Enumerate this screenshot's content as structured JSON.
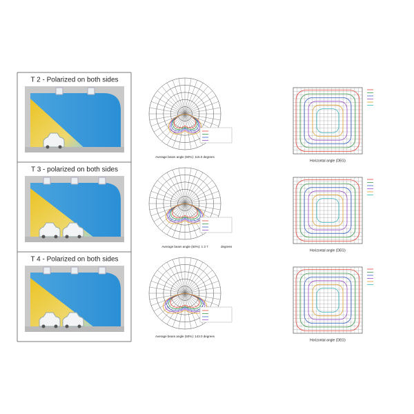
{
  "rows": [
    {
      "title": "T 2 - Polarized on both sides",
      "beam_caption": "Average beam angle (50%): 115.0 degrees",
      "isolux_xlabel": "Horizontal angle (DEG)"
    },
    {
      "title": "T 3 - polarized on both sides",
      "beam_caption": "Average beam angle (50%): 1 3 7",
      "beam_unit": "degrees",
      "isolux_xlabel": "Horizontal angle (DEG)"
    },
    {
      "title": "T 4 - Polarized on both sides",
      "beam_caption": "Average beam angle (50%): 143.0 degrees",
      "isolux_xlabel": "Horizontal angle (DEG)"
    }
  ]
}
